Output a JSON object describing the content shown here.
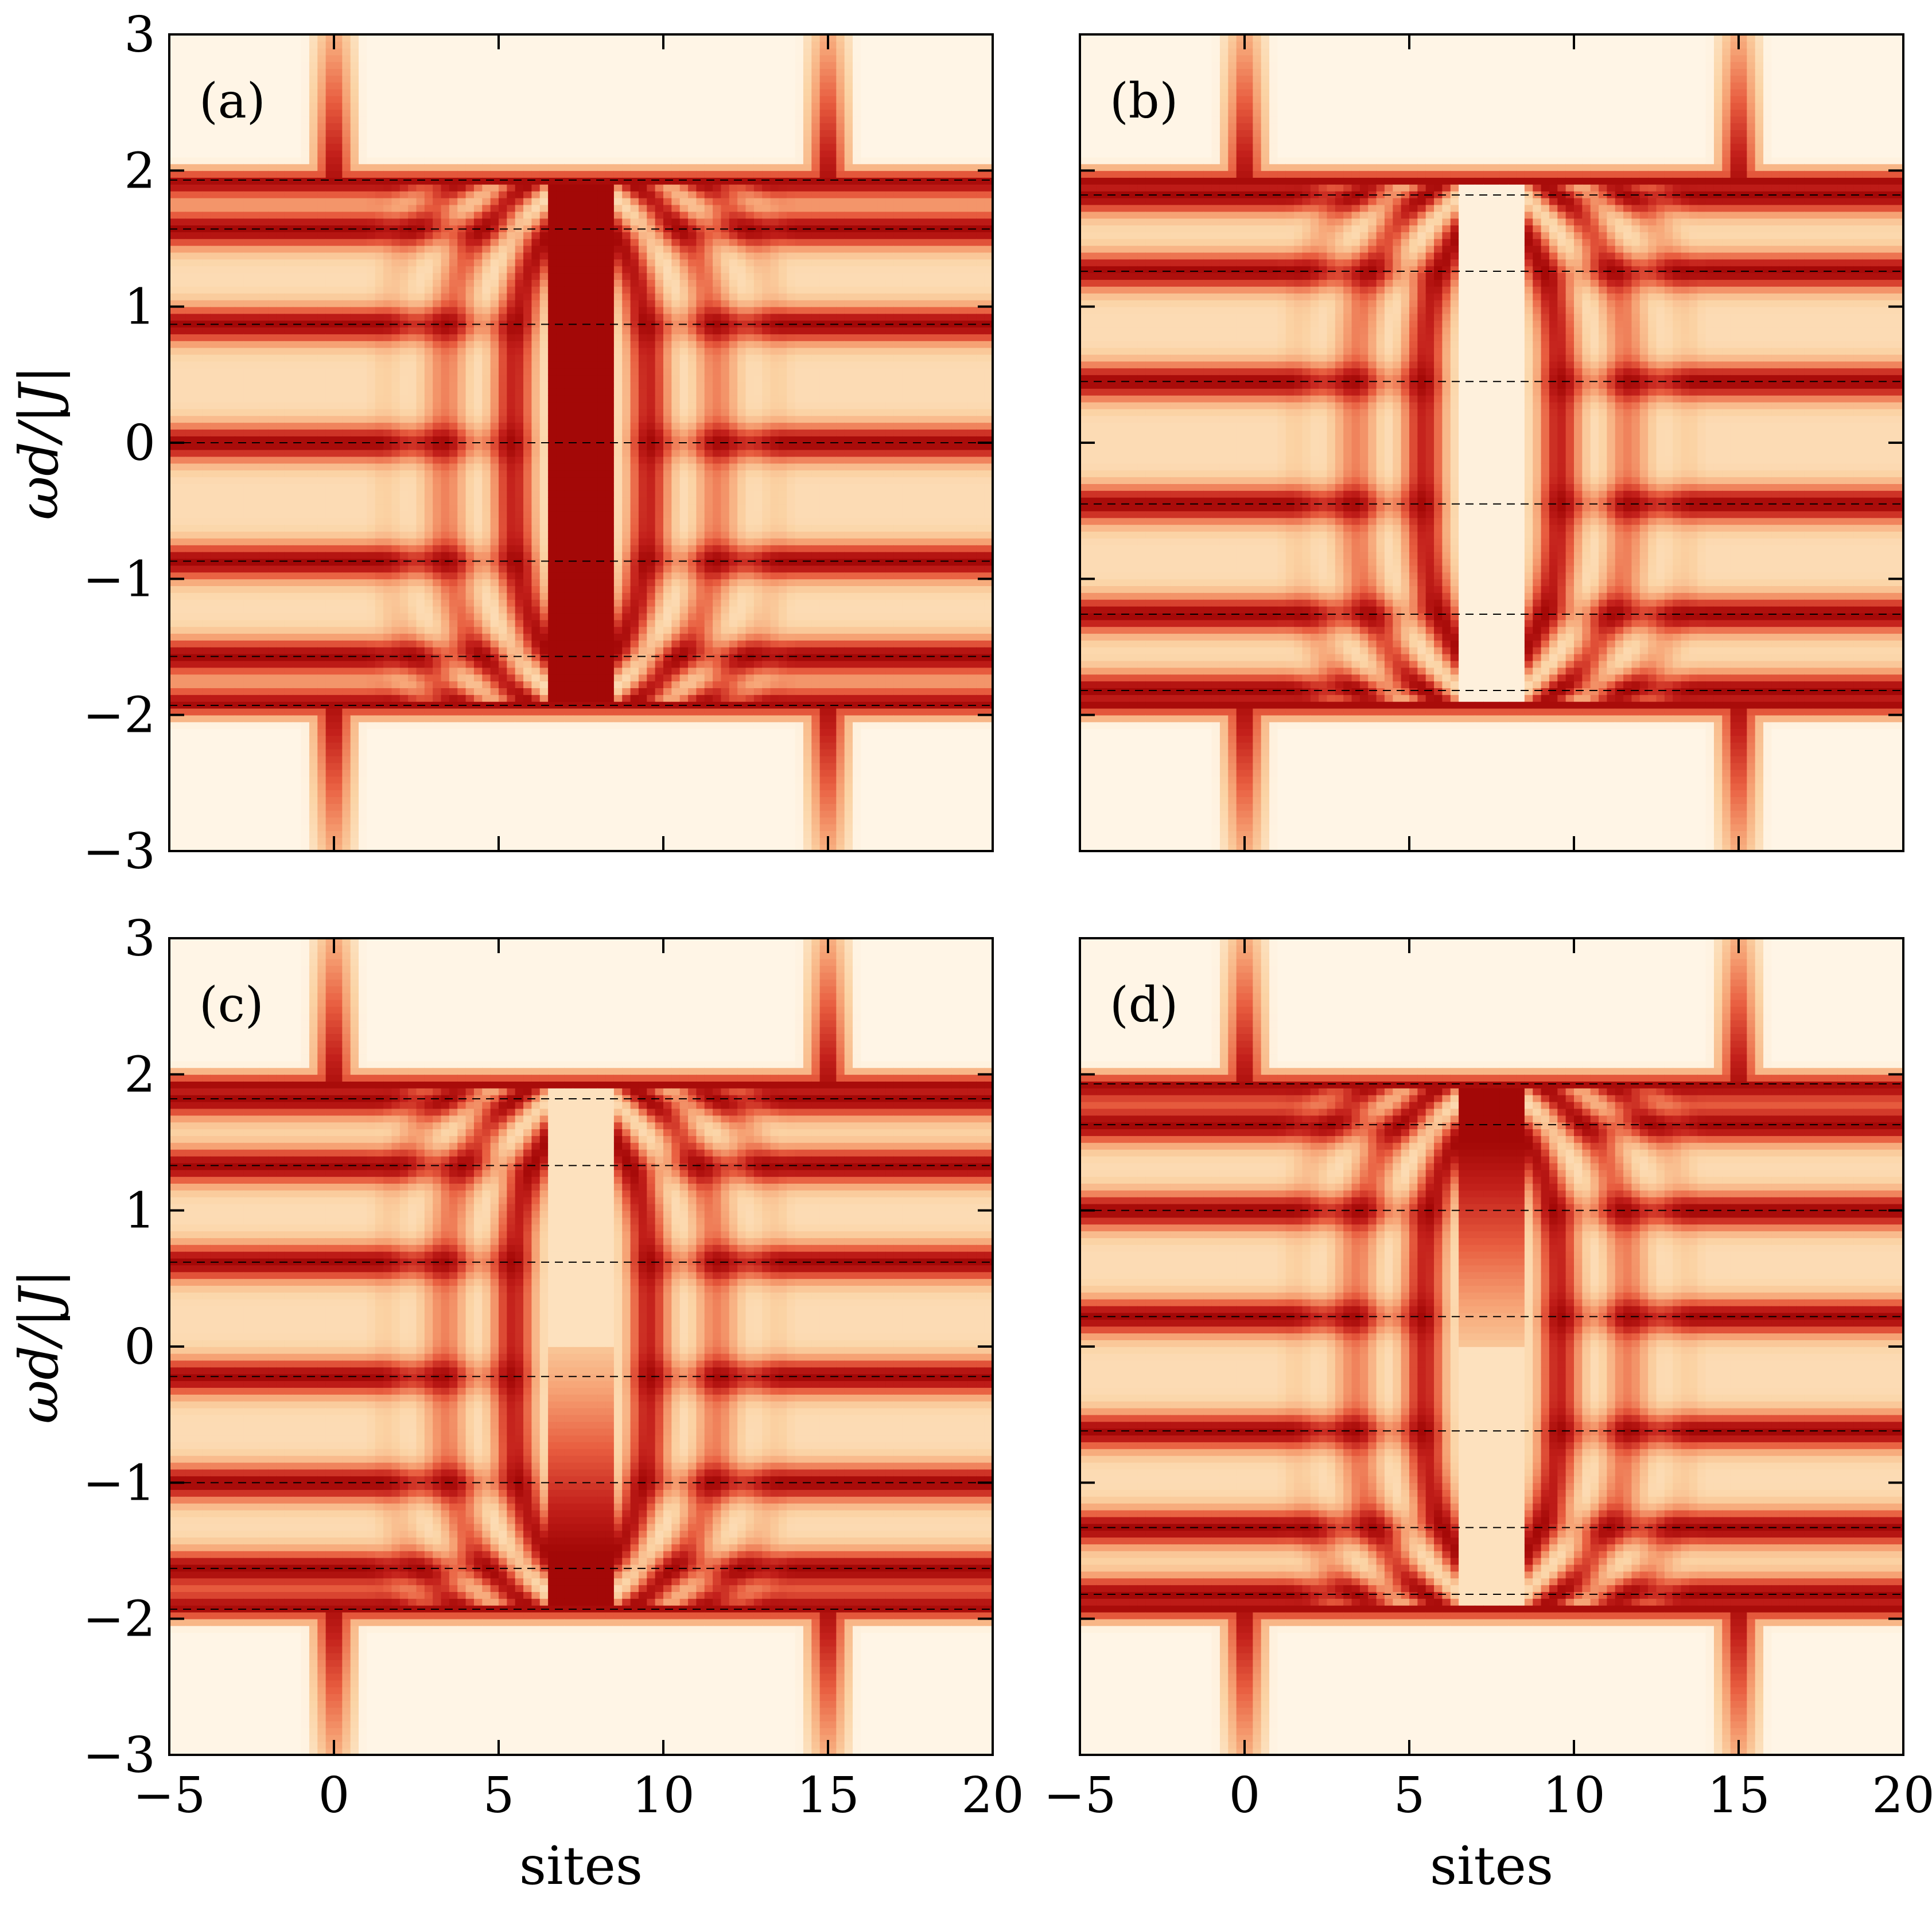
{
  "colors": {
    "background": "#fff5e6",
    "colormap": [
      "#fff5e6",
      "#fbd3a4",
      "#f6a274",
      "#e85d3f",
      "#c21f1a",
      "#990000"
    ],
    "dashed_line": "#000000",
    "frame": "#000000"
  },
  "chart_data": [
    {
      "type": "heatmap",
      "panel_label": "(a)",
      "xlabel": "",
      "ylabel": "ωd/|J|",
      "xlim": [
        -5,
        20
      ],
      "ylim": [
        -3,
        3
      ],
      "xticks": [
        -5,
        0,
        5,
        10,
        15,
        20
      ],
      "yticks": [
        -3,
        -2,
        -1,
        0,
        1,
        2,
        3
      ],
      "x_tick_labels": [],
      "y_tick_labels": [
        "−3",
        "−2",
        "−1",
        "0",
        "1",
        "2",
        "3"
      ],
      "impurity_sites": [
        0,
        15
      ],
      "dashed_levels": [
        1.93,
        1.57,
        0.87,
        0,
        -0.87,
        -1.57,
        -1.93
      ],
      "pattern": {
        "center": 7.5,
        "central_band": "dark",
        "n_stripes": 7,
        "arc_inner_x": 1,
        "arc_outer_x": 6
      }
    },
    {
      "type": "heatmap",
      "panel_label": "(b)",
      "xlabel": "",
      "ylabel": "",
      "xlim": [
        -5,
        20
      ],
      "ylim": [
        -3,
        3
      ],
      "xticks": [
        -5,
        0,
        5,
        10,
        15,
        20
      ],
      "yticks": [
        -3,
        -2,
        -1,
        0,
        1,
        2,
        3
      ],
      "x_tick_labels": [],
      "y_tick_labels": [],
      "impurity_sites": [
        0,
        15
      ],
      "dashed_levels": [
        1.82,
        1.26,
        0.45,
        -0.45,
        -1.26,
        -1.82
      ],
      "pattern": {
        "center": 7.5,
        "central_band": "gap",
        "n_stripes": 6,
        "arc_inner_x": 1,
        "arc_outer_x": 6
      }
    },
    {
      "type": "heatmap",
      "panel_label": "(c)",
      "xlabel": "sites",
      "ylabel": "ωd/|J|",
      "xlim": [
        -5,
        20
      ],
      "ylim": [
        -3,
        3
      ],
      "xticks": [
        -5,
        0,
        5,
        10,
        15,
        20
      ],
      "yticks": [
        -3,
        -2,
        -1,
        0,
        1,
        2,
        3
      ],
      "x_tick_labels": [
        "−5",
        "0",
        "5",
        "10",
        "15",
        "20"
      ],
      "y_tick_labels": [
        "−3",
        "−2",
        "−1",
        "0",
        "1",
        "2",
        "3"
      ],
      "impurity_sites": [
        0,
        15
      ],
      "dashed_levels": [
        1.82,
        1.33,
        0.62,
        -0.22,
        -1.0,
        -1.63,
        -1.93
      ],
      "pattern": {
        "center": 7.5,
        "central_band": "lower",
        "n_stripes": 7,
        "arc_inner_x": 1,
        "arc_outer_x": 6
      }
    },
    {
      "type": "heatmap",
      "panel_label": "(d)",
      "xlabel": "sites",
      "ylabel": "",
      "xlim": [
        -5,
        20
      ],
      "ylim": [
        -3,
        3
      ],
      "xticks": [
        -5,
        0,
        5,
        10,
        15,
        20
      ],
      "yticks": [
        -3,
        -2,
        -1,
        0,
        1,
        2,
        3
      ],
      "x_tick_labels": [
        "−5",
        "0",
        "5",
        "10",
        "15",
        "20"
      ],
      "y_tick_labels": [],
      "impurity_sites": [
        0,
        15
      ],
      "dashed_levels": [
        1.93,
        1.63,
        1.0,
        0.22,
        -0.62,
        -1.33,
        -1.82
      ],
      "pattern": {
        "center": 7.5,
        "central_band": "upper",
        "n_stripes": 7,
        "arc_inner_x": 1,
        "arc_outer_x": 6
      }
    }
  ]
}
